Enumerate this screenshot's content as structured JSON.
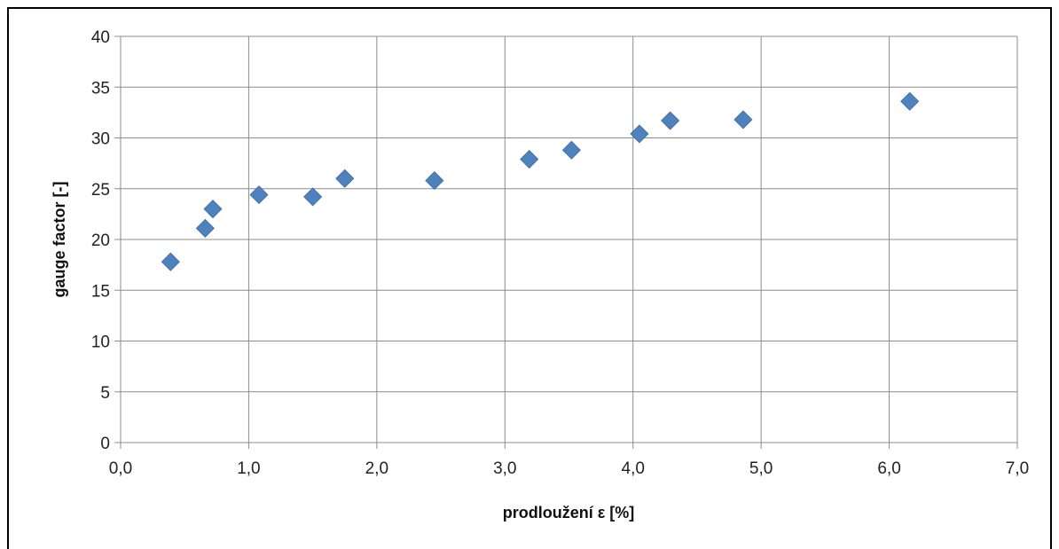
{
  "chart_data": {
    "type": "scatter",
    "title": "",
    "xlabel": "prodloužení ε [%]",
    "ylabel": "gauge factor [-]",
    "xlim": [
      0,
      7
    ],
    "ylim": [
      0,
      40
    ],
    "x_ticks": [
      0,
      1,
      2,
      3,
      4,
      5,
      6,
      7
    ],
    "y_ticks": [
      0,
      5,
      10,
      15,
      20,
      25,
      30,
      35,
      40
    ],
    "x_tick_labels": [
      "0,0",
      "1,0",
      "2,0",
      "3,0",
      "4,0",
      "5,0",
      "6,0",
      "7,0"
    ],
    "y_tick_labels": [
      "0",
      "5",
      "10",
      "15",
      "20",
      "25",
      "30",
      "35",
      "40"
    ],
    "grid": true,
    "legend": "none",
    "marker": "diamond",
    "series": [
      {
        "color": "#4f81bd",
        "points": [
          {
            "x": 0.39,
            "y": 17.8
          },
          {
            "x": 0.66,
            "y": 21.1
          },
          {
            "x": 0.72,
            "y": 23.0
          },
          {
            "x": 1.08,
            "y": 24.4
          },
          {
            "x": 1.5,
            "y": 24.2
          },
          {
            "x": 1.75,
            "y": 26.0
          },
          {
            "x": 2.45,
            "y": 25.8
          },
          {
            "x": 3.19,
            "y": 27.9
          },
          {
            "x": 3.52,
            "y": 28.8
          },
          {
            "x": 4.05,
            "y": 30.4
          },
          {
            "x": 4.29,
            "y": 31.7
          },
          {
            "x": 4.86,
            "y": 31.8
          },
          {
            "x": 6.16,
            "y": 33.6
          }
        ]
      }
    ]
  }
}
